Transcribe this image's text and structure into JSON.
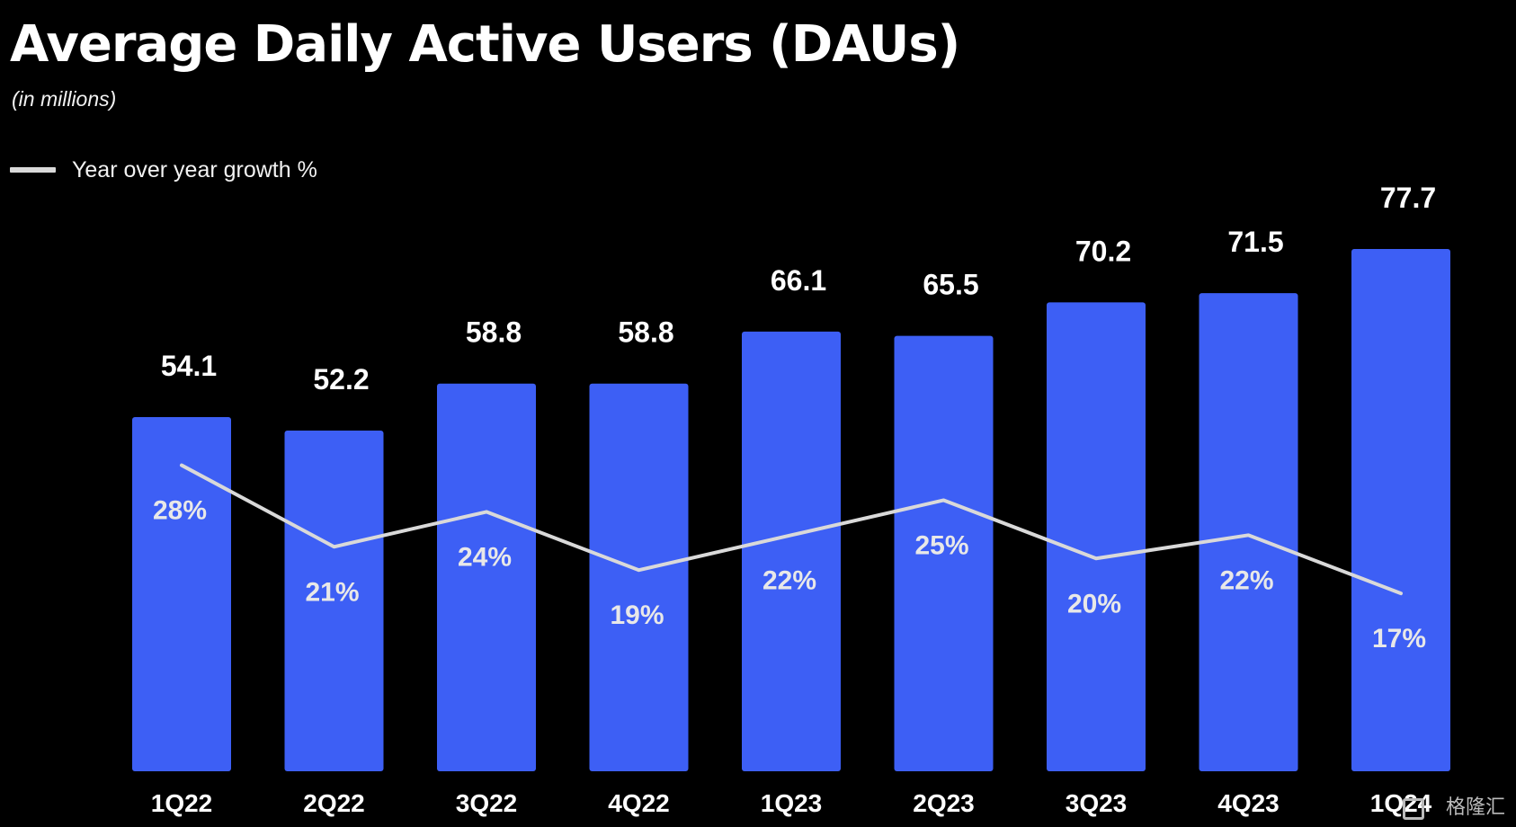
{
  "chart_data": {
    "type": "bar",
    "title": "Average Daily Active Users (DAUs)",
    "subtitle": "(in millions)",
    "categories": [
      "1Q22",
      "2Q22",
      "3Q22",
      "4Q22",
      "1Q23",
      "2Q23",
      "3Q23",
      "4Q23",
      "1Q24"
    ],
    "series": [
      {
        "type": "bar",
        "values": [
          54.1,
          52.2,
          58.8,
          58.8,
          66.1,
          65.5,
          70.2,
          71.5,
          77.7
        ],
        "labels": [
          "54.1",
          "52.2",
          "58.8",
          "58.8",
          "66.1",
          "65.5",
          "70.2",
          "71.5",
          "77.7"
        ],
        "color": "#3d5ff5"
      },
      {
        "type": "line",
        "name": "Year over year growth %",
        "values": [
          28,
          21,
          24,
          19,
          22,
          25,
          20,
          22,
          17
        ],
        "labels": [
          "28%",
          "21%",
          "24%",
          "19%",
          "22%",
          "25%",
          "20%",
          "22%",
          "17%"
        ],
        "color": "#d9d9d9"
      }
    ],
    "legend_position": "top-left",
    "grid": false,
    "background": "#000000",
    "text_color": "#ffffff",
    "label_inside_color": "#e8e8e8"
  },
  "watermark": {
    "text": "格隆汇"
  }
}
